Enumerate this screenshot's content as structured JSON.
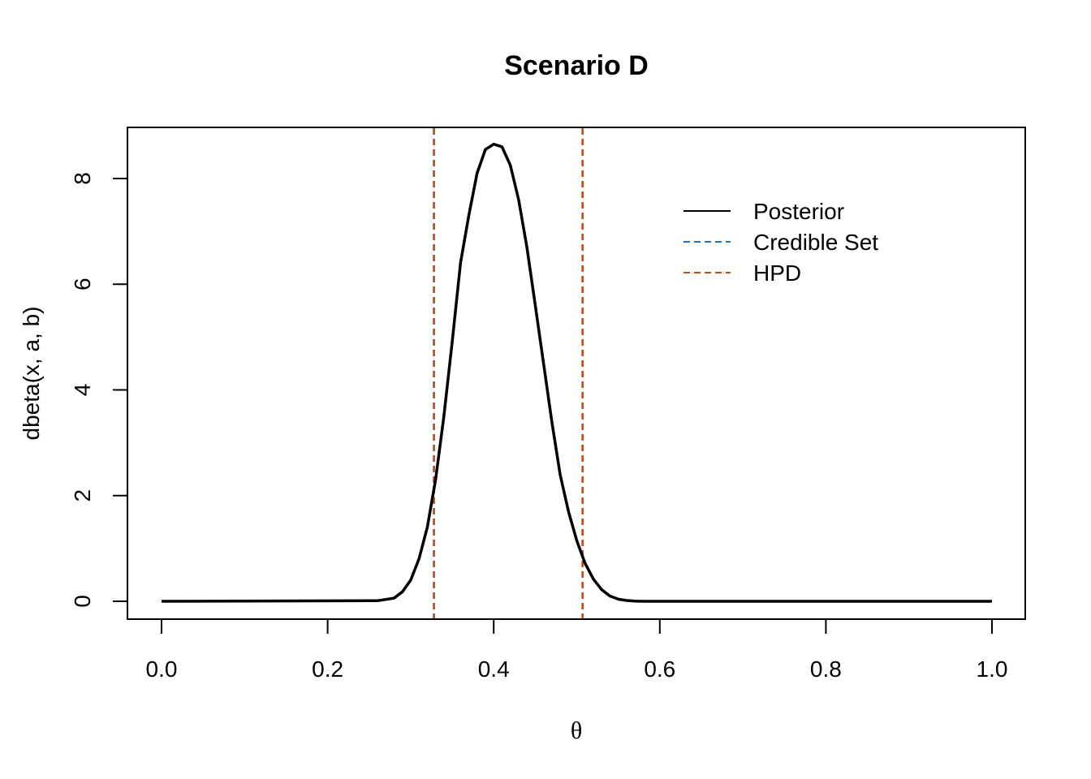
{
  "chart_data": {
    "type": "line",
    "title": "Scenario D",
    "xlabel": "θ",
    "ylabel": "dbeta(x, a, b)",
    "xlim": [
      0.0,
      1.0
    ],
    "ylim": [
      0,
      8.8
    ],
    "x_ticks": [
      "0.0",
      "0.2",
      "0.4",
      "0.6",
      "0.8",
      "1.0"
    ],
    "y_ticks": [
      "0",
      "2",
      "4",
      "6",
      "8"
    ],
    "grid": false,
    "legend_position": "top-right",
    "series": [
      {
        "name": "Posterior",
        "color": "#000000",
        "style": "solid",
        "x": [
          0.0,
          0.26,
          0.28,
          0.29,
          0.3,
          0.31,
          0.32,
          0.33,
          0.34,
          0.35,
          0.36,
          0.37,
          0.38,
          0.39,
          0.4,
          0.41,
          0.42,
          0.43,
          0.44,
          0.45,
          0.46,
          0.47,
          0.48,
          0.49,
          0.5,
          0.51,
          0.52,
          0.53,
          0.54,
          0.55,
          0.56,
          0.57,
          0.58,
          0.6,
          1.0
        ],
        "y": [
          0.0,
          0.01,
          0.06,
          0.18,
          0.4,
          0.8,
          1.4,
          2.3,
          3.5,
          4.9,
          6.4,
          7.3,
          8.1,
          8.55,
          8.65,
          8.6,
          8.25,
          7.6,
          6.7,
          5.6,
          4.5,
          3.4,
          2.4,
          1.7,
          1.15,
          0.72,
          0.42,
          0.22,
          0.1,
          0.04,
          0.015,
          0.005,
          0.0,
          0.0,
          0.0
        ]
      },
      {
        "name": "Credible Set",
        "color": "#1f77b4",
        "style": "dashed",
        "vlines": [
          0.328,
          0.507
        ]
      },
      {
        "name": "HPD",
        "color": "#c0501a",
        "style": "dashed",
        "vlines": [
          0.328,
          0.507
        ]
      }
    ]
  }
}
